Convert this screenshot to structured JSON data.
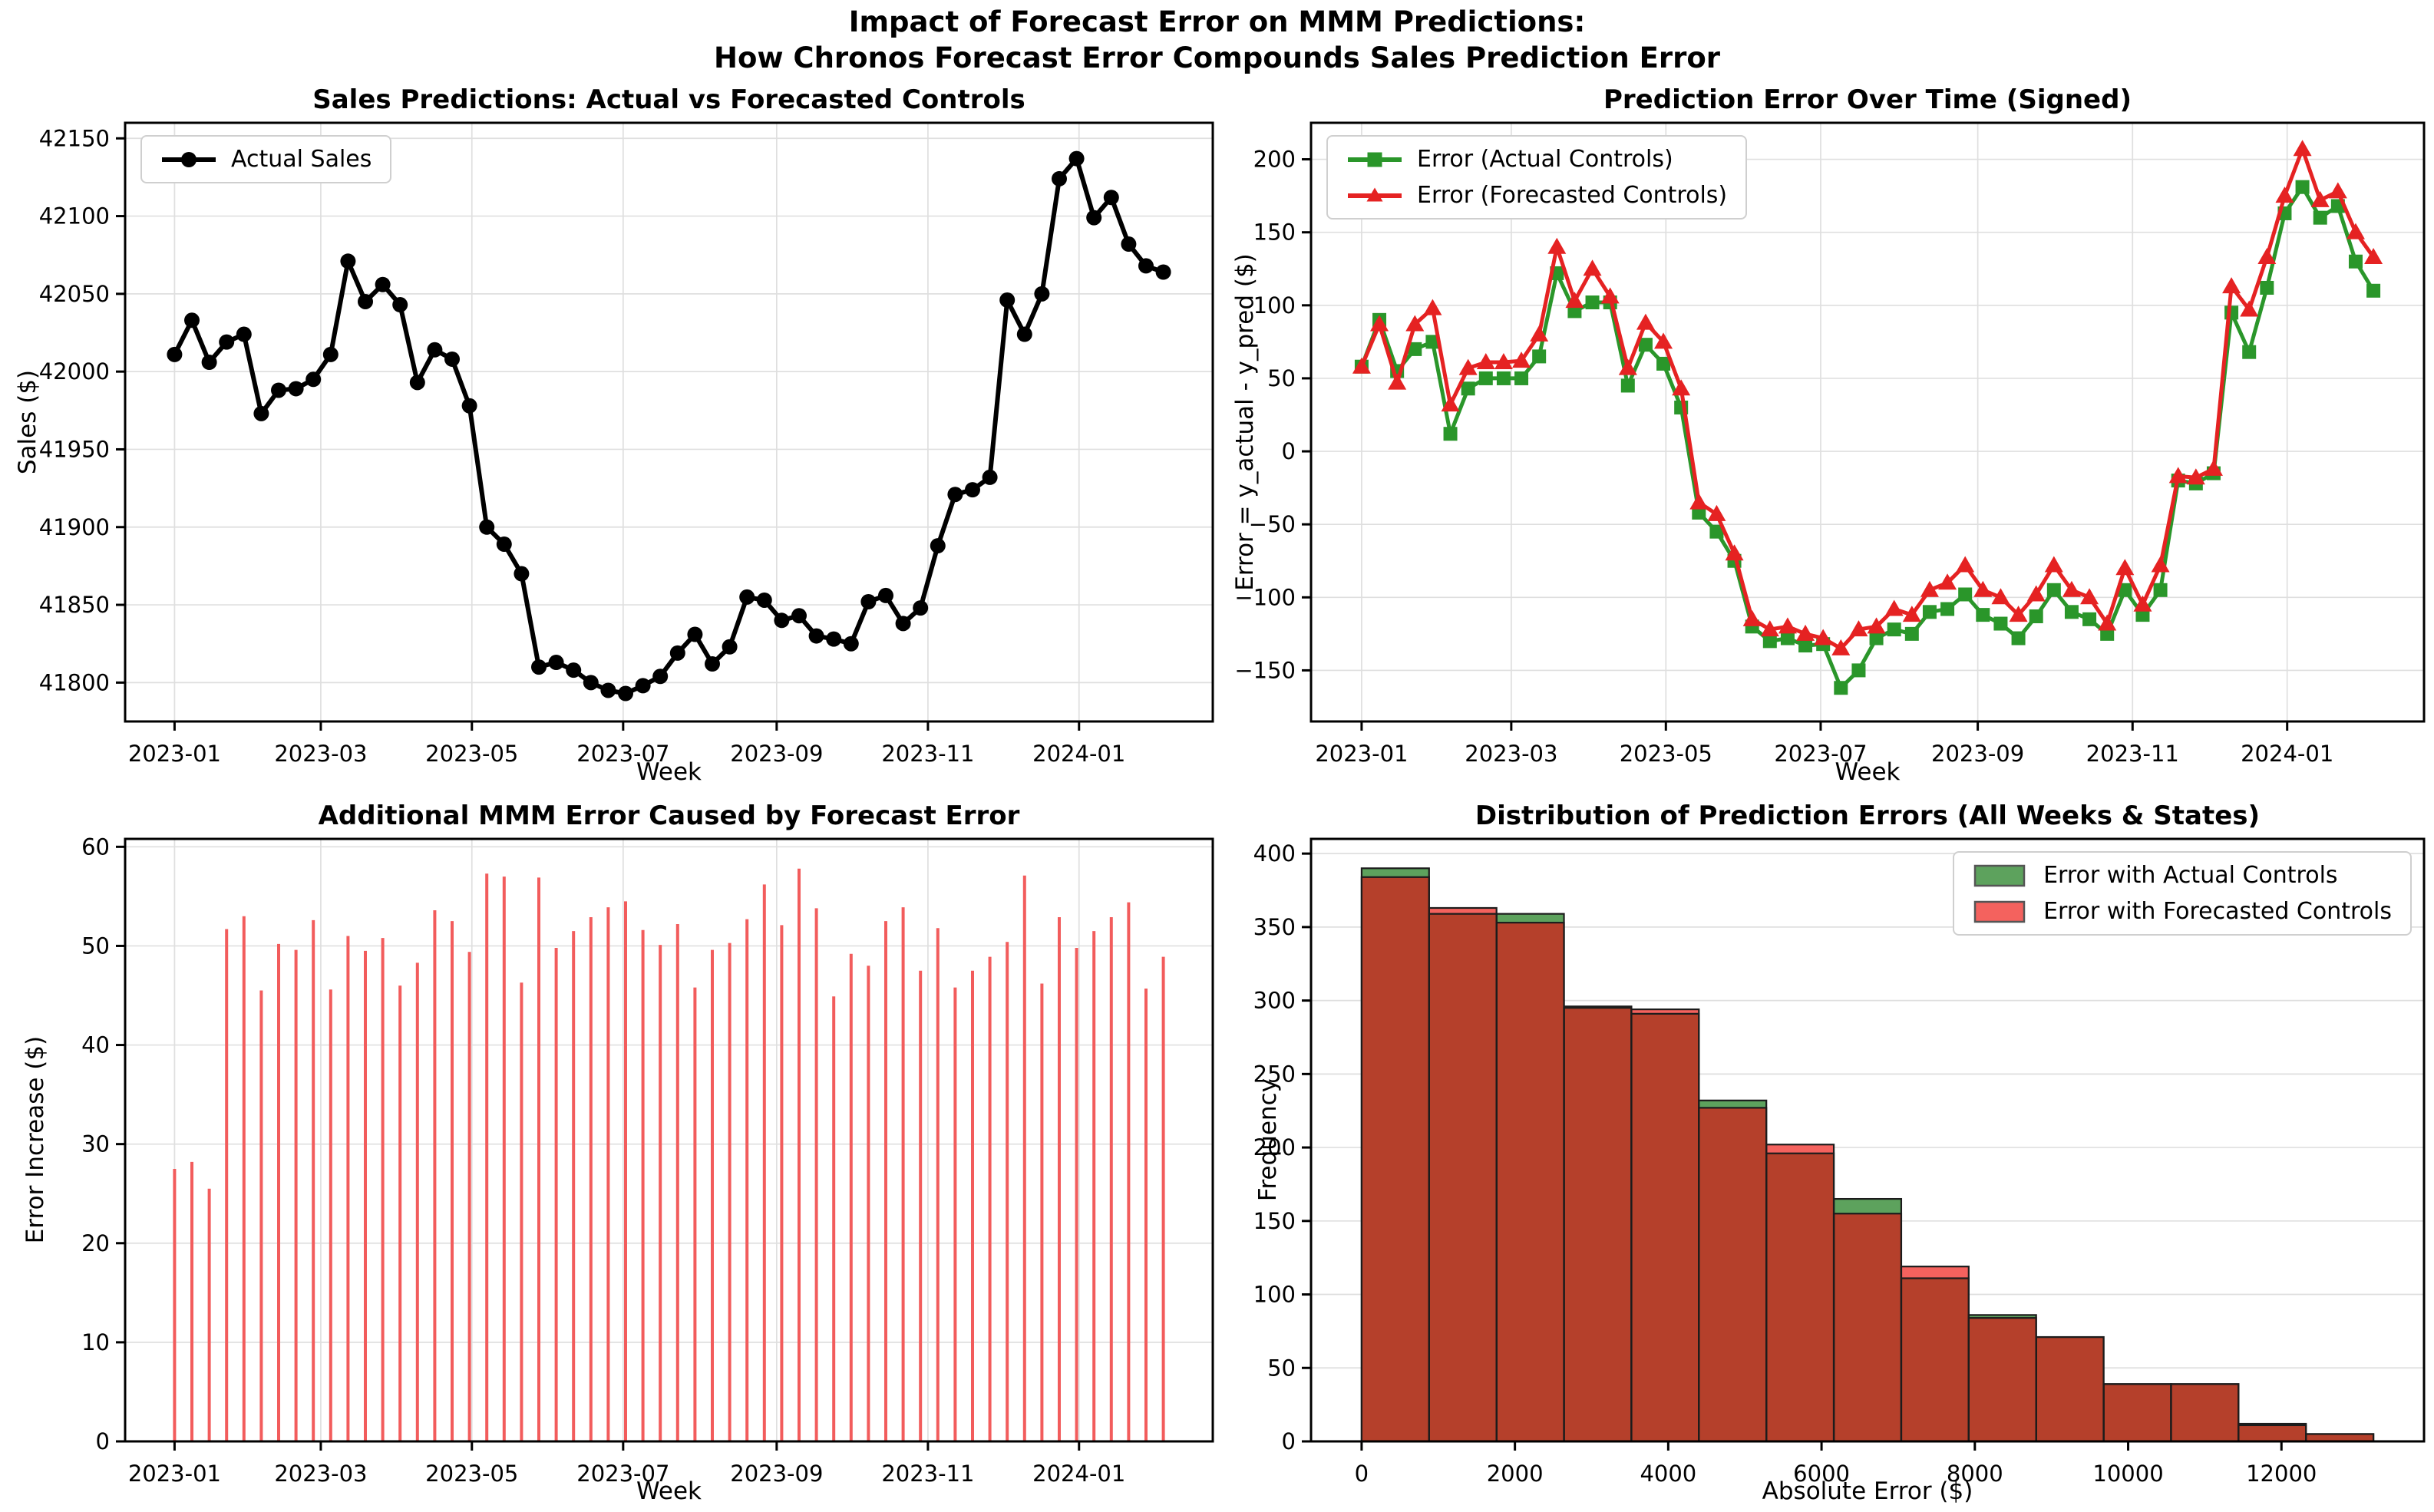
{
  "figure": {
    "suptitle_line1": "Impact of Forecast Error on MMM Predictions:",
    "suptitle_line2": "How Chronos Forecast Error Compounds Sales Prediction Error"
  },
  "colors": {
    "actual_sales": "#000000",
    "error_actual_controls": "#2a962a",
    "error_forecast_controls": "#e52222",
    "stem_bar": "#f25c5c",
    "hist_green_fill": "#5da25d",
    "hist_red_fill": "#f4625e",
    "hist_overlap": "#b5402b",
    "hist_edge": "#1c1c1c",
    "grid": "#dfdfdf",
    "spine": "#000000"
  },
  "week_axis": {
    "n_points": 58,
    "xlim": [
      -2.85,
      59.85
    ],
    "tick_positions": [
      0,
      8.43,
      17.14,
      25.86,
      34.71,
      43.43,
      52.14
    ],
    "tick_labels": [
      "2023-01",
      "2023-03",
      "2023-05",
      "2023-07",
      "2023-09",
      "2023-11",
      "2024-01"
    ]
  },
  "chart_data": [
    {
      "id": "sales",
      "type": "line",
      "title": "Sales Predictions: Actual vs Forecasted Controls",
      "xlabel": "Week",
      "ylabel": "Sales ($)",
      "ylim": [
        41775,
        42160
      ],
      "yticks": [
        41800,
        41850,
        41900,
        41950,
        42000,
        42050,
        42100,
        42150
      ],
      "grid": "both",
      "legend": {
        "position": "top-left",
        "items": [
          {
            "label": "Actual Sales",
            "marker": "circle",
            "color": "#000000"
          }
        ]
      },
      "series": [
        {
          "name": "Actual Sales",
          "marker": "circle",
          "color": "#000000",
          "linewidth": 6,
          "marker_size": 10,
          "values": [
            42011,
            42033,
            42006,
            42019,
            42024,
            41973,
            41988,
            41989,
            41995,
            42011,
            42071,
            42045,
            42056,
            42043,
            41993,
            42014,
            42008,
            41978,
            41900,
            41889,
            41870,
            41810,
            41813,
            41808,
            41800,
            41795,
            41793,
            41798,
            41804,
            41819,
            41831,
            41812,
            41823,
            41855,
            41853,
            41840,
            41843,
            41830,
            41828,
            41825,
            41852,
            41856,
            41838,
            41848,
            41888,
            41921,
            41924,
            41932,
            42046,
            42024,
            42050,
            42124,
            42137,
            42099,
            42112,
            42082,
            42068,
            42064
          ]
        }
      ]
    },
    {
      "id": "error",
      "type": "line",
      "title": "Prediction Error Over Time (Signed)",
      "xlabel": "Week",
      "ylabel": "Error = y_actual - y_pred ($)",
      "ylim": [
        -185,
        225
      ],
      "yticks": [
        -150,
        -100,
        -50,
        0,
        50,
        100,
        150,
        200
      ],
      "grid": "both",
      "legend": {
        "position": "top-left",
        "items": [
          {
            "label": "Error (Actual Controls)",
            "marker": "square",
            "color": "#2a962a"
          },
          {
            "label": "Error (Forecasted Controls)",
            "marker": "triangle",
            "color": "#e52222"
          }
        ]
      },
      "series": [
        {
          "name": "Error (Actual Controls)",
          "marker": "square",
          "color": "#2a962a",
          "linewidth": 5,
          "marker_size": 9,
          "values": [
            58,
            90,
            55,
            70,
            75,
            12,
            43,
            50,
            50,
            50,
            65,
            122,
            96,
            102,
            102,
            45,
            73,
            60,
            30,
            -42,
            -55,
            -75,
            -120,
            -130,
            -128,
            -133,
            -132,
            -162,
            -150,
            -128,
            -122,
            -125,
            -110,
            -108,
            -98,
            -112,
            -118,
            -128,
            -113,
            -95,
            -110,
            -115,
            -125,
            -95,
            -112,
            -95,
            -20,
            -22,
            -15,
            95,
            68,
            112,
            163,
            181,
            160,
            168,
            130,
            110
          ]
        },
        {
          "name": "Error (Forecasted Controls)",
          "marker": "triangle",
          "color": "#e52222",
          "linewidth": 5,
          "marker_size": 11,
          "values": [
            58,
            87,
            47,
            87,
            98,
            32,
            57,
            61,
            61,
            62,
            80,
            140,
            103,
            125,
            106,
            57,
            88,
            75,
            43,
            -35,
            -43,
            -70,
            -115,
            -122,
            -120,
            -125,
            -128,
            -135,
            -122,
            -120,
            -108,
            -112,
            -95,
            -90,
            -78,
            -95,
            -100,
            -112,
            -98,
            -78,
            -95,
            -100,
            -118,
            -80,
            -105,
            -78,
            -17,
            -18,
            -12,
            113,
            97,
            133,
            175,
            207,
            172,
            178,
            150,
            133
          ]
        }
      ]
    },
    {
      "id": "stem",
      "type": "stem",
      "title": "Additional MMM Error Caused by Forecast Error",
      "xlabel": "Week",
      "ylabel": "Error Increase ($)",
      "ylim": [
        0,
        60.8
      ],
      "yticks": [
        0,
        10,
        20,
        30,
        40,
        50,
        60
      ],
      "grid": "both",
      "values": [
        27.5,
        28.2,
        25.5,
        51.7,
        53.0,
        45.5,
        50.2,
        49.6,
        52.6,
        45.6,
        51.0,
        49.5,
        50.8,
        46.0,
        48.3,
        53.6,
        52.5,
        49.4,
        57.3,
        57.0,
        46.3,
        56.9,
        49.8,
        51.5,
        52.9,
        53.9,
        54.5,
        51.6,
        50.1,
        52.2,
        45.8,
        49.6,
        50.3,
        52.7,
        56.2,
        52.1,
        57.8,
        53.8,
        44.9,
        49.2,
        48.0,
        52.5,
        53.9,
        47.5,
        51.8,
        45.8,
        47.5,
        48.9,
        50.4,
        57.1,
        46.2,
        52.9,
        49.8,
        51.5,
        52.9,
        54.4,
        45.7,
        48.9
      ]
    },
    {
      "id": "hist",
      "type": "histogram",
      "title": "Distribution of Prediction Errors (All Weeks & States)",
      "xlabel": "Absolute Error ($)",
      "ylabel": "Frequency",
      "bin_start": 0,
      "bin_width": 880,
      "xlim": [
        -660,
        13860
      ],
      "xticks": [
        0,
        2000,
        4000,
        6000,
        8000,
        10000,
        12000
      ],
      "ylim": [
        0,
        410
      ],
      "yticks": [
        0,
        50,
        100,
        150,
        200,
        250,
        300,
        350,
        400
      ],
      "grid": "y",
      "legend": {
        "position": "top-right",
        "items": [
          {
            "label": "Error with Actual Controls",
            "marker": "patch",
            "color": "#5da25d"
          },
          {
            "label": "Error with Forecasted Controls",
            "marker": "patch",
            "color": "#f4625e"
          }
        ]
      },
      "series": [
        {
          "name": "Error with Actual Controls",
          "values": [
            390,
            359,
            359,
            296,
            291,
            232,
            196,
            165,
            111,
            86,
            71,
            39,
            39,
            11,
            5
          ]
        },
        {
          "name": "Error with Forecasted Controls",
          "values": [
            384,
            363,
            353,
            295,
            294,
            227,
            202,
            155,
            119,
            84,
            71,
            39,
            39,
            12,
            5
          ]
        }
      ]
    }
  ]
}
